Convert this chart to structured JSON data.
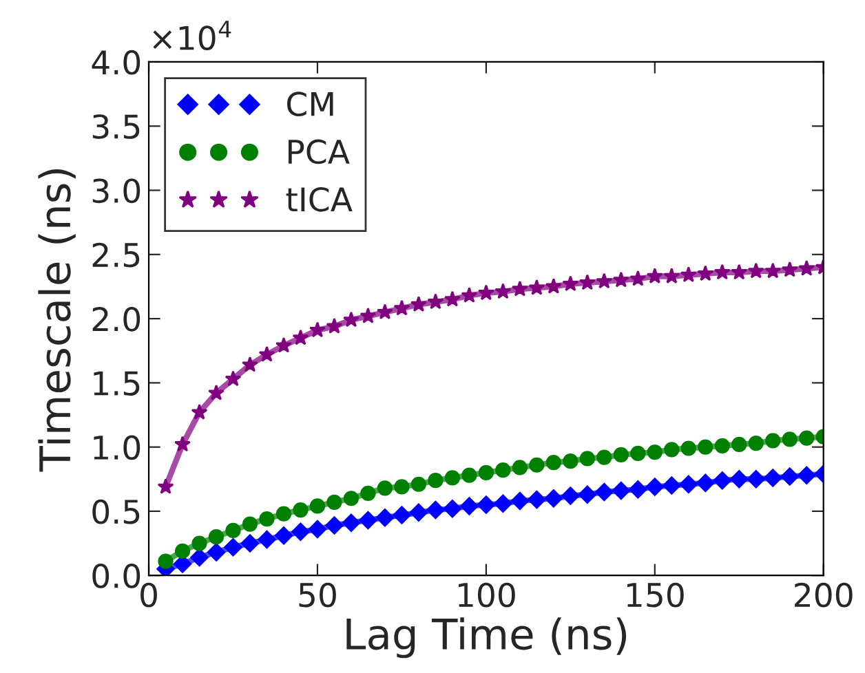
{
  "chart_data": {
    "type": "line",
    "xlabel": "Lag Time (ns)",
    "ylabel": "Timescale (ns)",
    "annotations": [
      "×10$^{4}$"
    ],
    "x": [
      5,
      10,
      15,
      20,
      25,
      30,
      35,
      40,
      45,
      50,
      55,
      60,
      65,
      70,
      75,
      80,
      85,
      90,
      95,
      100,
      105,
      110,
      115,
      120,
      125,
      130,
      135,
      140,
      145,
      150,
      155,
      160,
      165,
      170,
      175,
      180,
      185,
      190,
      195,
      200
    ],
    "series": [
      {
        "name": "CM",
        "color": "#0000ff",
        "marker": "diamond",
        "values": [
          0.05,
          0.09,
          0.14,
          0.18,
          0.22,
          0.25,
          0.28,
          0.31,
          0.34,
          0.36,
          0.39,
          0.41,
          0.43,
          0.45,
          0.47,
          0.49,
          0.51,
          0.52,
          0.54,
          0.55,
          0.56,
          0.58,
          0.59,
          0.6,
          0.62,
          0.63,
          0.65,
          0.66,
          0.67,
          0.69,
          0.7,
          0.71,
          0.72,
          0.74,
          0.75,
          0.75,
          0.76,
          0.77,
          0.78,
          0.79
        ]
      },
      {
        "name": "PCA",
        "color": "#008000",
        "marker": "circle",
        "values": [
          0.11,
          0.19,
          0.25,
          0.3,
          0.35,
          0.4,
          0.44,
          0.48,
          0.51,
          0.54,
          0.57,
          0.6,
          0.64,
          0.68,
          0.69,
          0.71,
          0.74,
          0.76,
          0.78,
          0.8,
          0.82,
          0.84,
          0.86,
          0.88,
          0.89,
          0.91,
          0.92,
          0.94,
          0.95,
          0.96,
          0.98,
          0.99,
          1.0,
          1.01,
          1.02,
          1.03,
          1.05,
          1.06,
          1.07,
          1.08
        ]
      },
      {
        "name": "tICA",
        "color": "#800080",
        "marker": "star",
        "values": [
          0.69,
          1.02,
          1.27,
          1.42,
          1.53,
          1.64,
          1.72,
          1.79,
          1.85,
          1.91,
          1.94,
          1.99,
          2.02,
          2.05,
          2.08,
          2.11,
          2.13,
          2.15,
          2.18,
          2.2,
          2.21,
          2.23,
          2.24,
          2.25,
          2.27,
          2.28,
          2.29,
          2.3,
          2.31,
          2.33,
          2.33,
          2.34,
          2.35,
          2.36,
          2.36,
          2.37,
          2.37,
          2.38,
          2.39,
          2.4
        ]
      }
    ],
    "xlim": [
      0,
      200
    ],
    "xticks": [
      0,
      50,
      100,
      150,
      200
    ],
    "ylim": [
      0,
      4
    ],
    "yticks": [
      {
        "value": 0,
        "label": "0.0"
      },
      {
        "value": 0.5,
        "label": "0.5"
      },
      {
        "value": 1,
        "label": "1.0"
      },
      {
        "value": 1.5,
        "label": "1.5"
      },
      {
        "value": 2,
        "label": "2.0"
      },
      {
        "value": 2.5,
        "label": "2.5"
      },
      {
        "value": 3,
        "label": "3.0"
      },
      {
        "value": 3.5,
        "label": "3.5"
      },
      {
        "value": 4,
        "label": "4.0"
      }
    ],
    "grid": false,
    "legend": "top left",
    "line_style": "solid"
  }
}
